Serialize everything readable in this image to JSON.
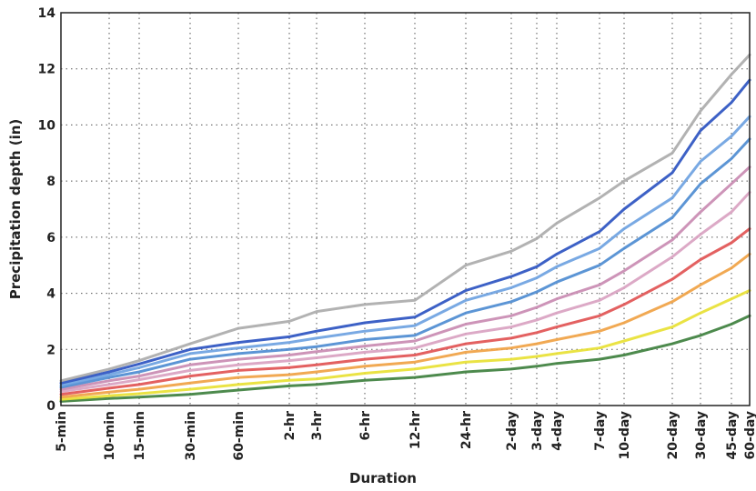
{
  "chart_data": {
    "type": "line",
    "title": "",
    "xlabel": "Duration",
    "ylabel": "Precipitation depth (in)",
    "ylim": [
      0,
      14
    ],
    "yticks": [
      0,
      2,
      4,
      6,
      8,
      10,
      12,
      14
    ],
    "grid": true,
    "legend": "none",
    "categories": [
      "5-min",
      "10-min",
      "15-min",
      "30-min",
      "60-min",
      "2-hr",
      "3-hr",
      "6-hr",
      "12-hr",
      "24-hr",
      "2-day",
      "3-day",
      "4-day",
      "7-day",
      "10-day",
      "20-day",
      "30-day",
      "45-day",
      "60-day"
    ],
    "series": [
      {
        "color": "#3a7d3a",
        "values": [
          0.15,
          0.25,
          0.3,
          0.4,
          0.55,
          0.7,
          0.75,
          0.9,
          1.0,
          1.2,
          1.3,
          1.4,
          1.5,
          1.65,
          1.8,
          2.2,
          2.5,
          2.9,
          3.2
        ]
      },
      {
        "color": "#e8e030",
        "values": [
          0.22,
          0.35,
          0.42,
          0.58,
          0.75,
          0.9,
          0.95,
          1.15,
          1.3,
          1.55,
          1.65,
          1.75,
          1.85,
          2.05,
          2.3,
          2.8,
          3.3,
          3.8,
          4.1
        ]
      },
      {
        "color": "#f0a040",
        "values": [
          0.3,
          0.48,
          0.58,
          0.8,
          1.0,
          1.1,
          1.2,
          1.4,
          1.55,
          1.9,
          2.05,
          2.2,
          2.35,
          2.65,
          2.95,
          3.7,
          4.3,
          4.9,
          5.4
        ]
      },
      {
        "color": "#e05050",
        "values": [
          0.4,
          0.62,
          0.75,
          1.05,
          1.25,
          1.35,
          1.45,
          1.65,
          1.8,
          2.2,
          2.4,
          2.6,
          2.8,
          3.2,
          3.6,
          4.5,
          5.2,
          5.8,
          6.3
        ]
      },
      {
        "color": "#d8a0c0",
        "values": [
          0.5,
          0.75,
          0.92,
          1.25,
          1.45,
          1.6,
          1.7,
          1.9,
          2.05,
          2.55,
          2.8,
          3.05,
          3.3,
          3.75,
          4.2,
          5.3,
          6.1,
          6.9,
          7.6
        ]
      },
      {
        "color": "#c888b0",
        "values": [
          0.58,
          0.88,
          1.05,
          1.45,
          1.65,
          1.8,
          1.92,
          2.12,
          2.3,
          2.9,
          3.2,
          3.5,
          3.8,
          4.3,
          4.8,
          5.9,
          6.9,
          7.9,
          8.5
        ]
      },
      {
        "color": "#4a8ad0",
        "values": [
          0.65,
          1.0,
          1.2,
          1.65,
          1.85,
          2.0,
          2.1,
          2.35,
          2.5,
          3.3,
          3.7,
          4.05,
          4.4,
          5.0,
          5.6,
          6.7,
          7.9,
          8.8,
          9.5
        ]
      },
      {
        "color": "#6aa0e0",
        "values": [
          0.72,
          1.1,
          1.35,
          1.85,
          2.05,
          2.25,
          2.4,
          2.65,
          2.85,
          3.75,
          4.2,
          4.55,
          4.95,
          5.6,
          6.3,
          7.4,
          8.7,
          9.6,
          10.3
        ]
      },
      {
        "color": "#2850c0",
        "values": [
          0.8,
          1.2,
          1.48,
          2.0,
          2.25,
          2.45,
          2.65,
          2.95,
          3.15,
          4.1,
          4.6,
          4.95,
          5.4,
          6.2,
          7.0,
          8.3,
          9.8,
          10.8,
          11.6
        ]
      },
      {
        "color": "#aaaaaa",
        "values": [
          0.88,
          1.3,
          1.6,
          2.2,
          2.75,
          3.0,
          3.35,
          3.6,
          3.75,
          5.0,
          5.5,
          5.95,
          6.5,
          7.4,
          8.0,
          9.0,
          10.5,
          11.8,
          12.5
        ]
      }
    ]
  }
}
